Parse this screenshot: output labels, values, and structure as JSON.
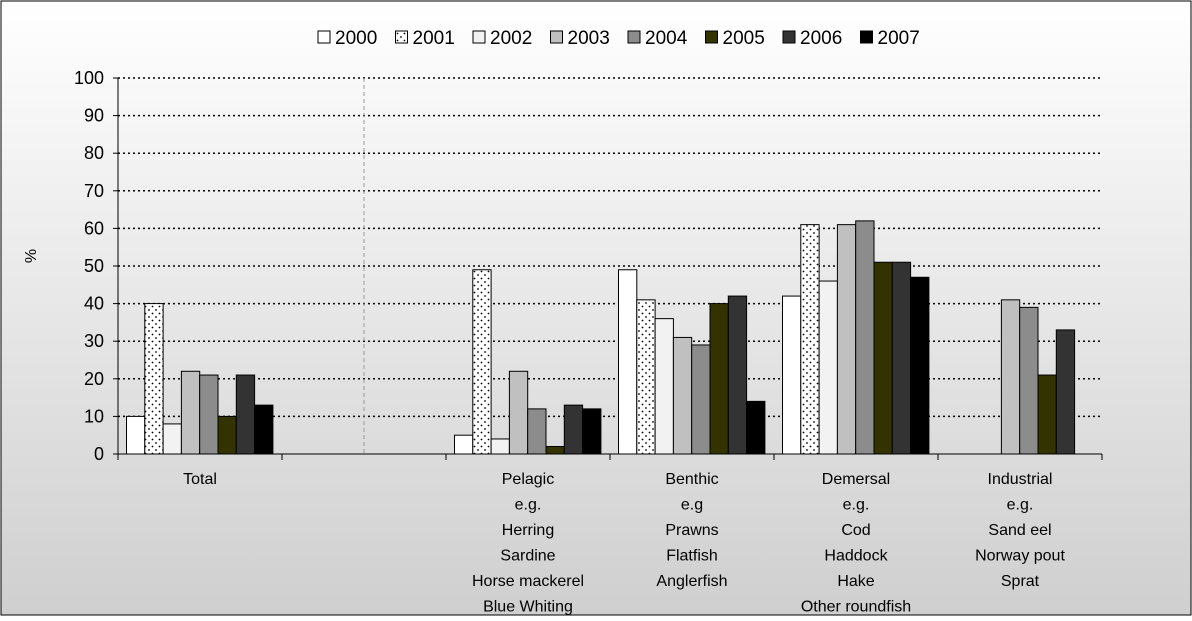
{
  "chart_data": {
    "type": "bar",
    "title": "",
    "xlabel": "",
    "ylabel": "%",
    "ylim": [
      0,
      100
    ],
    "yticks": [
      0,
      10,
      20,
      30,
      40,
      50,
      60,
      70,
      80,
      90,
      100
    ],
    "grid": true,
    "legend_position": "top",
    "categories": [
      [
        "Total"
      ],
      [
        ""
      ],
      [
        "Pelagic",
        "e.g.",
        "Herring",
        "Sardine",
        "Horse mackerel",
        "Blue Whiting"
      ],
      [
        "Benthic",
        "e.g",
        "Prawns",
        "Flatfish",
        "Anglerfish"
      ],
      [
        "Demersal",
        "e.g.",
        "Cod",
        "Haddock",
        "Hake",
        "Other roundfish"
      ],
      [
        "Industrial",
        "e.g.",
        "Sand eel",
        "Norway pout",
        "Sprat"
      ]
    ],
    "series": [
      {
        "name": "2000",
        "color": "#ffffff",
        "pattern": "none",
        "values": [
          10,
          null,
          5,
          49,
          42,
          null
        ]
      },
      {
        "name": "2001",
        "color": "#ffffff",
        "pattern": "dots",
        "values": [
          40,
          null,
          49,
          41,
          61,
          null
        ]
      },
      {
        "name": "2002",
        "color": "#f2f2f2",
        "pattern": "none",
        "values": [
          8,
          null,
          4,
          36,
          46,
          null
        ]
      },
      {
        "name": "2003",
        "color": "#c0c0c0",
        "pattern": "none",
        "values": [
          22,
          null,
          22,
          31,
          61,
          41
        ]
      },
      {
        "name": "2004",
        "color": "#8c8c8c",
        "pattern": "none",
        "values": [
          21,
          null,
          12,
          29,
          62,
          39
        ]
      },
      {
        "name": "2005",
        "color": "#333300",
        "pattern": "none",
        "values": [
          10,
          null,
          2,
          40,
          51,
          21
        ]
      },
      {
        "name": "2006",
        "color": "#333333",
        "pattern": "none",
        "values": [
          21,
          null,
          13,
          42,
          51,
          33
        ]
      },
      {
        "name": "2007",
        "color": "#000000",
        "pattern": "none",
        "values": [
          13,
          null,
          12,
          14,
          47,
          null
        ]
      }
    ],
    "colors": {
      "background_gradient_top": "#ffffff",
      "background_gradient_bottom": "#cfcfcf",
      "gridline": "#000000",
      "separator": "#999999"
    }
  }
}
